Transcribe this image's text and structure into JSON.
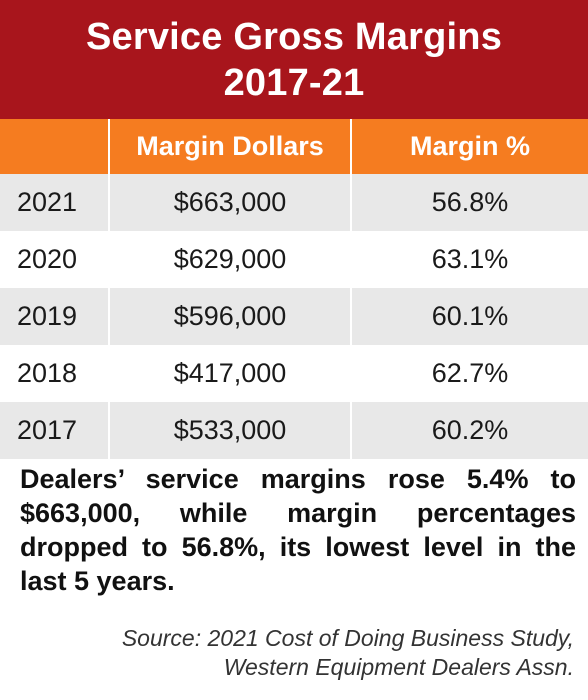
{
  "colors": {
    "title_bg": "#a8151c",
    "header_bg": "#f57c20",
    "row_alt_bg": "#e8e8e8",
    "row_bg": "#ffffff"
  },
  "title": {
    "line1": "Service Gross Margins",
    "line2": "2017-21"
  },
  "chart_data": {
    "type": "table",
    "title": "Service Gross Margins 2017-21",
    "columns": [
      "",
      "Margin Dollars",
      "Margin %"
    ],
    "rows": [
      {
        "year": "2021",
        "margin_dollars": "$663,000",
        "margin_pct": "56.8%"
      },
      {
        "year": "2020",
        "margin_dollars": "$629,000",
        "margin_pct": "63.1%"
      },
      {
        "year": "2019",
        "margin_dollars": "$596,000",
        "margin_pct": "60.1%"
      },
      {
        "year": "2018",
        "margin_dollars": "$417,000",
        "margin_pct": "62.7%"
      },
      {
        "year": "2017",
        "margin_dollars": "$533,000",
        "margin_pct": "60.2%"
      }
    ]
  },
  "caption": "Dealers’ service margins rose 5.4% to $663,000, while margin percentages dropped to 56.8%, its lowest level in the last 5 years.",
  "source": {
    "line1": "Source: 2021 Cost of Doing Business Study,",
    "line2": "Western Equipment Dealers Assn."
  }
}
